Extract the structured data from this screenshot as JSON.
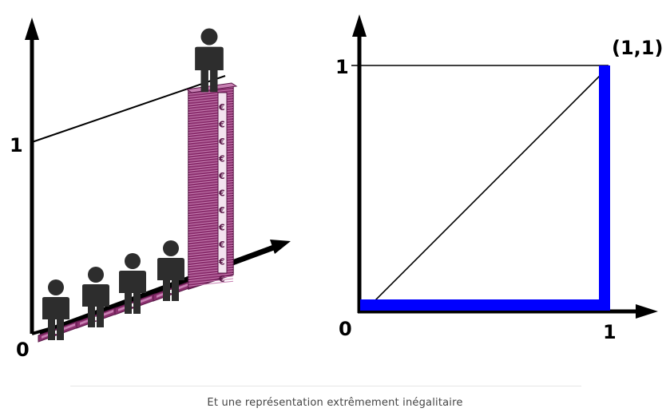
{
  "left_figure": {
    "origin_label": "0",
    "y_tick_label": "1",
    "people_count": 5,
    "rich_person_index": 4,
    "currency_symbol": "€"
  },
  "right_figure": {
    "origin_label": "0",
    "x_tick_label": "1",
    "y_tick_label": "1",
    "endpoint_label": "(1,1)",
    "curve_color": "#0000ff"
  },
  "caption": "Et une représentation extrêmement inégalitaire"
}
